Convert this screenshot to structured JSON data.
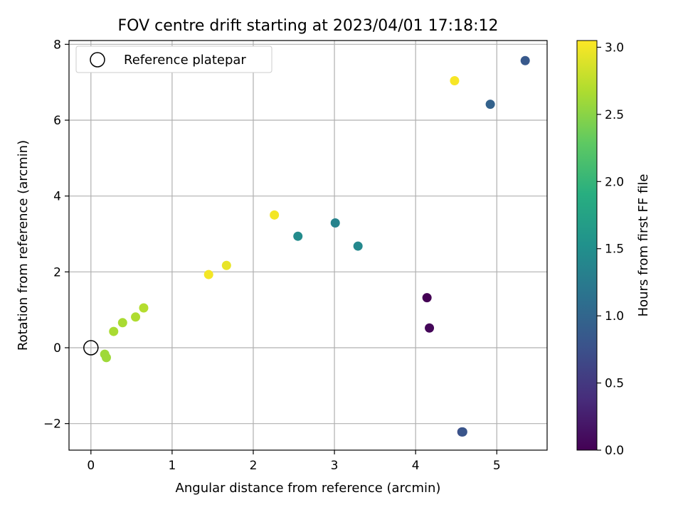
{
  "chart_data": {
    "type": "scatter",
    "title": "FOV centre drift starting at 2023/04/01 17:18:12",
    "xlabel": "Angular distance from reference (arcmin)",
    "ylabel": "Rotation from reference (arcmin)",
    "xlim": [
      -0.27,
      5.62
    ],
    "ylim": [
      -2.7,
      8.1
    ],
    "xticks": [
      0,
      1,
      2,
      3,
      4,
      5
    ],
    "yticks": [
      -2,
      0,
      2,
      4,
      6,
      8
    ],
    "xtick_labels": [
      "0",
      "1",
      "2",
      "3",
      "4",
      "5"
    ],
    "ytick_labels": [
      "−2",
      "0",
      "2",
      "4",
      "6",
      "8"
    ],
    "grid": true,
    "legend": {
      "position": "top-left",
      "entries": [
        "Reference platepar"
      ]
    },
    "reference_point": {
      "x": 0,
      "y": 0
    },
    "colorbar": {
      "label": "Hours from first FF file",
      "min": 0.0,
      "max": 3.05,
      "colormap": "viridis",
      "ticks": [
        0.0,
        0.5,
        1.0,
        1.5,
        2.0,
        2.5,
        3.0
      ],
      "tick_labels": [
        "0.0",
        "0.5",
        "1.0",
        "1.5",
        "2.0",
        "2.5",
        "3.0"
      ]
    },
    "points": [
      {
        "x": 4.14,
        "y": 1.32,
        "hours": 0.0
      },
      {
        "x": 4.17,
        "y": 0.52,
        "hours": 0.05
      },
      {
        "x": 4.57,
        "y": -2.22,
        "hours": 0.7
      },
      {
        "x": 4.58,
        "y": -2.22,
        "hours": 0.8
      },
      {
        "x": 4.92,
        "y": 6.42,
        "hours": 0.95
      },
      {
        "x": 5.35,
        "y": 7.57,
        "hours": 0.85
      },
      {
        "x": 2.55,
        "y": 2.94,
        "hours": 1.45
      },
      {
        "x": 3.01,
        "y": 3.29,
        "hours": 1.35
      },
      {
        "x": 3.29,
        "y": 2.68,
        "hours": 1.42
      },
      {
        "x": 0.17,
        "y": -0.17,
        "hours": 2.6
      },
      {
        "x": 0.19,
        "y": -0.26,
        "hours": 2.6
      },
      {
        "x": 0.28,
        "y": 0.43,
        "hours": 2.65
      },
      {
        "x": 0.39,
        "y": 0.66,
        "hours": 2.65
      },
      {
        "x": 0.55,
        "y": 0.81,
        "hours": 2.68
      },
      {
        "x": 0.65,
        "y": 1.05,
        "hours": 2.7
      },
      {
        "x": 1.45,
        "y": 1.93,
        "hours": 3.0
      },
      {
        "x": 1.67,
        "y": 2.17,
        "hours": 2.95
      },
      {
        "x": 2.26,
        "y": 3.5,
        "hours": 3.0
      },
      {
        "x": 4.48,
        "y": 7.04,
        "hours": 3.02
      }
    ]
  }
}
